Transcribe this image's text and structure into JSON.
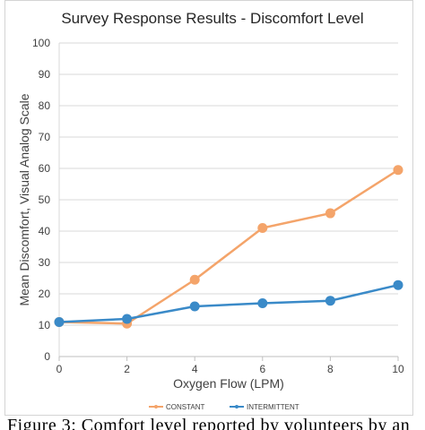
{
  "chart_data": {
    "type": "line",
    "title": "Survey Response Results - Discomfort Level",
    "xlabel": "Oxygen Flow (LPM)",
    "ylabel": "Mean Discomfort, Visual Analog Scale",
    "x": [
      0,
      2,
      4,
      6,
      8,
      10
    ],
    "xlim": [
      0,
      10
    ],
    "ylim": [
      0,
      100
    ],
    "x_ticks": [
      0,
      2,
      4,
      6,
      8,
      10
    ],
    "y_ticks": [
      0,
      10,
      20,
      30,
      40,
      50,
      60,
      70,
      80,
      90,
      100
    ],
    "grid": "horizontal",
    "legend_position": "bottom",
    "series": [
      {
        "name": "CONSTANT",
        "color": "#f4a46a",
        "values": [
          11,
          10.5,
          24.5,
          41,
          45.7,
          59.5
        ]
      },
      {
        "name": "INTERMITTENT",
        "color": "#3a8ac8",
        "values": [
          11,
          12,
          16,
          17,
          17.8,
          22.8
        ]
      }
    ]
  },
  "caption": "Figure 3: Comfort level reported by volunteers by an"
}
